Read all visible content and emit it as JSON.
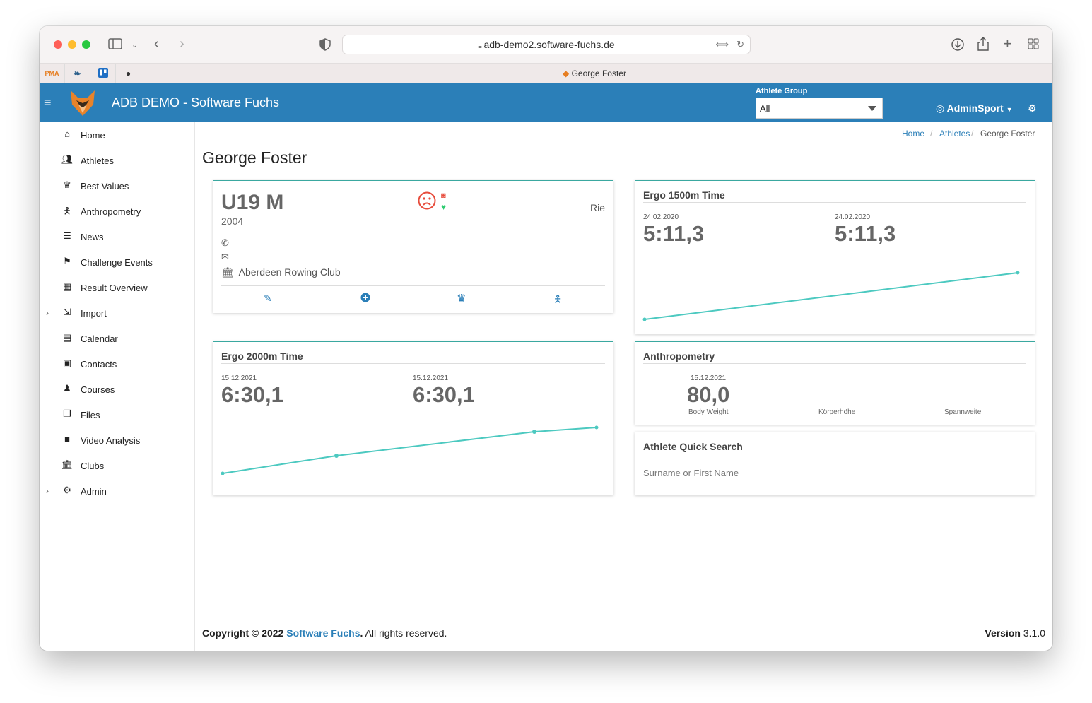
{
  "browser": {
    "url": "adb-demo2.software-fuchs.de",
    "tab_title": "George Foster",
    "pinned_tabs": [
      "PMA",
      "app-2",
      "trello",
      "apple"
    ]
  },
  "header": {
    "brand": "ADB DEMO - Software Fuchs",
    "athlete_group_label": "Athlete Group",
    "athlete_group_value": "All",
    "user": "AdminSport"
  },
  "sidebar": {
    "items": [
      {
        "label": "Home",
        "icon": "home-icon"
      },
      {
        "label": "Athletes",
        "icon": "users-icon"
      },
      {
        "label": "Best Values",
        "icon": "trophy-icon"
      },
      {
        "label": "Anthropometry",
        "icon": "person-icon"
      },
      {
        "label": "News",
        "icon": "list-icon"
      },
      {
        "label": "Challenge Events",
        "icon": "flag-icon"
      },
      {
        "label": "Result Overview",
        "icon": "table-icon"
      },
      {
        "label": "Import",
        "icon": "import-icon"
      },
      {
        "label": "Calendar",
        "icon": "calendar-icon"
      },
      {
        "label": "Contacts",
        "icon": "contact-card-icon"
      },
      {
        "label": "Courses",
        "icon": "graduate-icon"
      },
      {
        "label": "Files",
        "icon": "files-icon"
      },
      {
        "label": "Video Analysis",
        "icon": "video-icon"
      },
      {
        "label": "Clubs",
        "icon": "bank-icon"
      },
      {
        "label": "Admin",
        "icon": "cogs-icon"
      }
    ]
  },
  "breadcrumb": {
    "home": "Home",
    "athletes": "Athletes",
    "current": "George Foster"
  },
  "page": {
    "title": "George Foster"
  },
  "profile": {
    "category": "U19 M",
    "year": "2004",
    "side": "Rie",
    "club": "Aberdeen Rowing Club"
  },
  "ergo1500": {
    "title": "Ergo 1500m Time",
    "left_date": "24.02.2020",
    "left_value": "5:11,3",
    "right_date": "24.02.2020",
    "right_value": "5:11,3"
  },
  "ergo2000": {
    "title": "Ergo 2000m Time",
    "left_date": "15.12.2021",
    "left_value": "6:30,1",
    "right_date": "15.12.2021",
    "right_value": "6:30,1"
  },
  "anthropometry": {
    "title": "Anthropometry",
    "date": "15.12.2021",
    "value": "80,0",
    "labels": [
      "Body Weight",
      "Körperhöhe",
      "Spannweite"
    ]
  },
  "quick_search": {
    "title": "Athlete Quick Search",
    "placeholder": "Surname or First Name"
  },
  "footer": {
    "copyright_prefix": "Copyright © 2022",
    "company": "Software Fuchs",
    "rights": ". All rights reserved.",
    "version_label": "Version",
    "version": "3.1.0"
  },
  "colors": {
    "accent": "#2b7fb8",
    "teal": "#3aa8a0",
    "line": "#4cc9c0",
    "sad": "#e74c3c",
    "heart": "#2ecc71"
  }
}
